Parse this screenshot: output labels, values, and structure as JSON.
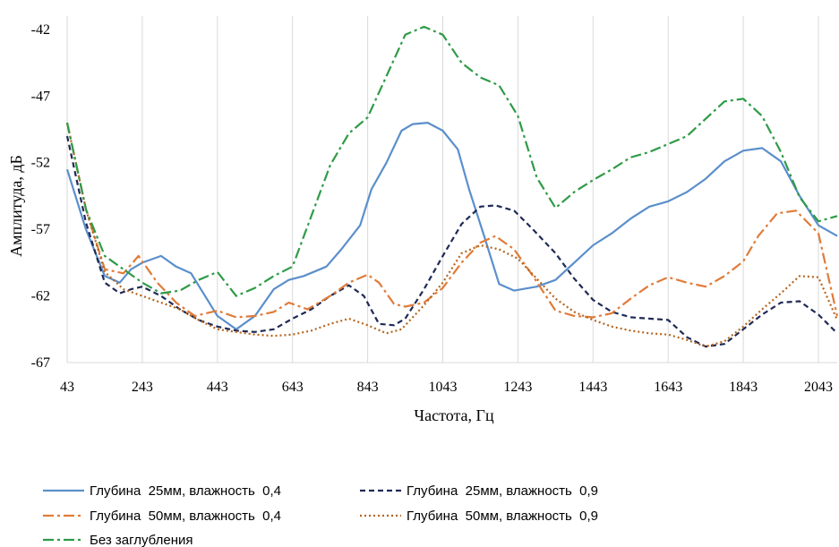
{
  "chart_data": {
    "type": "line",
    "title": "",
    "xlabel": "Частота, Гц",
    "ylabel": "Амплитуда, дБ",
    "xlim": [
      43,
      2093
    ],
    "ylim": [
      -67,
      -41
    ],
    "xticks": [
      43,
      243,
      443,
      643,
      843,
      1043,
      1243,
      1443,
      1643,
      1843,
      2043
    ],
    "yticks": [
      -42,
      -47,
      -52,
      -57,
      -62,
      -67
    ],
    "grid": "vertical",
    "legend_position": "bottom",
    "series": [
      {
        "name": "Глубина  25мм, влажность  0,4",
        "color": "#5B8FCB",
        "dash": "",
        "x": [
          43,
          93,
          143,
          183,
          213,
          243,
          293,
          333,
          373,
          443,
          493,
          543,
          593,
          633,
          673,
          733,
          773,
          823,
          853,
          893,
          933,
          963,
          1003,
          1043,
          1083,
          1113,
          1153,
          1193,
          1233,
          1293,
          1343,
          1393,
          1443,
          1493,
          1543,
          1593,
          1643,
          1693,
          1743,
          1793,
          1843,
          1893,
          1943,
          1993,
          2043,
          2093
        ],
        "y": [
          -52.5,
          -57,
          -60.5,
          -61,
          -60,
          -59.5,
          -59,
          -59.8,
          -60.3,
          -63.5,
          -64.5,
          -63.5,
          -61.5,
          -60.8,
          -60.5,
          -59.8,
          -58.5,
          -56.7,
          -54,
          -52,
          -49.6,
          -49.1,
          -49.0,
          -49.6,
          -51.0,
          -54.0,
          -57.5,
          -61.1,
          -61.6,
          -61.3,
          -60.8,
          -59.5,
          -58.2,
          -57.3,
          -56.2,
          -55.3,
          -54.9,
          -54.2,
          -53.2,
          -51.9,
          -51.1,
          -50.9,
          -51.9,
          -54.5,
          -56.7,
          -57.5
        ]
      },
      {
        "name": "Глубина  25мм, влажность  0,9",
        "color": "#1F2A56",
        "dash": "6,4",
        "x": [
          43,
          93,
          143,
          183,
          213,
          243,
          293,
          343,
          393,
          443,
          493,
          543,
          593,
          643,
          693,
          743,
          793,
          833,
          873,
          913,
          943,
          993,
          1043,
          1093,
          1143,
          1183,
          1233,
          1283,
          1343,
          1393,
          1443,
          1493,
          1543,
          1593,
          1643,
          1693,
          1743,
          1793,
          1843,
          1893,
          1943,
          1993,
          2043,
          2093
        ],
        "y": [
          -50,
          -56.5,
          -61,
          -61.8,
          -61.5,
          -61.3,
          -62,
          -63,
          -63.8,
          -64.3,
          -64.6,
          -64.7,
          -64.5,
          -63.7,
          -63,
          -62,
          -61.2,
          -62,
          -64.1,
          -64.2,
          -63.7,
          -61.5,
          -59,
          -56.6,
          -55.3,
          -55.2,
          -55.6,
          -57,
          -58.8,
          -60.7,
          -62.3,
          -63.2,
          -63.6,
          -63.7,
          -63.8,
          -65.1,
          -65.8,
          -65.6,
          -64.5,
          -63.4,
          -62.5,
          -62.4,
          -63.4,
          -64.8
        ]
      },
      {
        "name": "Глубина  50мм, влажность  0,4",
        "color": "#E07B39",
        "dash": "12,4,3,4",
        "x": [
          43,
          93,
          143,
          193,
          233,
          283,
          333,
          383,
          443,
          493,
          543,
          593,
          633,
          683,
          743,
          793,
          843,
          873,
          913,
          943,
          993,
          1043,
          1093,
          1143,
          1183,
          1233,
          1283,
          1343,
          1393,
          1443,
          1493,
          1543,
          1593,
          1643,
          1693,
          1743,
          1793,
          1843,
          1883,
          1933,
          1983,
          2043,
          2093
        ],
        "y": [
          -49,
          -55.5,
          -60,
          -60.3,
          -59,
          -61,
          -62.5,
          -63.5,
          -63.1,
          -63.6,
          -63.5,
          -63.2,
          -62.5,
          -63,
          -62,
          -61,
          -60.4,
          -61,
          -62.6,
          -62.8,
          -62.5,
          -61.4,
          -59.5,
          -58,
          -57.5,
          -58.5,
          -60.5,
          -63.1,
          -63.5,
          -63.6,
          -63.3,
          -62.2,
          -61.2,
          -60.6,
          -61.0,
          -61.3,
          -60.5,
          -59.4,
          -57.5,
          -55.8,
          -55.6,
          -57.3,
          -63.5
        ]
      },
      {
        "name": "Глубина  50мм, влажность  0,9",
        "color": "#B5651D",
        "dash": "2,3",
        "x": [
          43,
          93,
          143,
          193,
          243,
          293,
          343,
          393,
          443,
          493,
          543,
          593,
          643,
          693,
          743,
          793,
          843,
          893,
          933,
          993,
          1043,
          1093,
          1143,
          1193,
          1243,
          1293,
          1343,
          1393,
          1443,
          1493,
          1543,
          1593,
          1643,
          1693,
          1743,
          1793,
          1843,
          1893,
          1943,
          1993,
          2043,
          2093
        ],
        "y": [
          -49,
          -55.5,
          -60.2,
          -61.5,
          -62,
          -62.5,
          -63,
          -63.8,
          -64.5,
          -64.7,
          -64.9,
          -65,
          -64.9,
          -64.6,
          -64.1,
          -63.7,
          -64.2,
          -64.8,
          -64.5,
          -62.7,
          -61,
          -58.8,
          -58.2,
          -58.5,
          -59.2,
          -60.7,
          -62.2,
          -63.2,
          -63.8,
          -64.3,
          -64.6,
          -64.8,
          -64.9,
          -65.3,
          -65.8,
          -65.4,
          -64.3,
          -63.0,
          -61.8,
          -60.5,
          -60.6,
          -63.8
        ]
      },
      {
        "name": "Без заглубления",
        "color": "#2E9B47",
        "dash": "12,4,3,4",
        "x": [
          43,
          93,
          143,
          193,
          243,
          293,
          343,
          393,
          443,
          493,
          543,
          593,
          643,
          693,
          743,
          793,
          843,
          893,
          943,
          993,
          1043,
          1093,
          1143,
          1193,
          1243,
          1293,
          1343,
          1393,
          1443,
          1493,
          1543,
          1593,
          1643,
          1693,
          1743,
          1793,
          1843,
          1893,
          1943,
          1993,
          2043,
          2093
        ],
        "y": [
          -49,
          -55.5,
          -59,
          -60,
          -61,
          -61.8,
          -61.6,
          -60.8,
          -60.2,
          -62,
          -61.4,
          -60.5,
          -59.8,
          -56,
          -52.2,
          -49.8,
          -48.6,
          -45.5,
          -42.4,
          -41.8,
          -42.4,
          -44.5,
          -45.6,
          -46.2,
          -48.5,
          -53.1,
          -55.4,
          -54.2,
          -53.3,
          -52.5,
          -51.6,
          -51.2,
          -50.6,
          -50,
          -48.7,
          -47.4,
          -47.2,
          -48.5,
          -51.2,
          -54.6,
          -56.4,
          -56.0
        ]
      }
    ]
  }
}
